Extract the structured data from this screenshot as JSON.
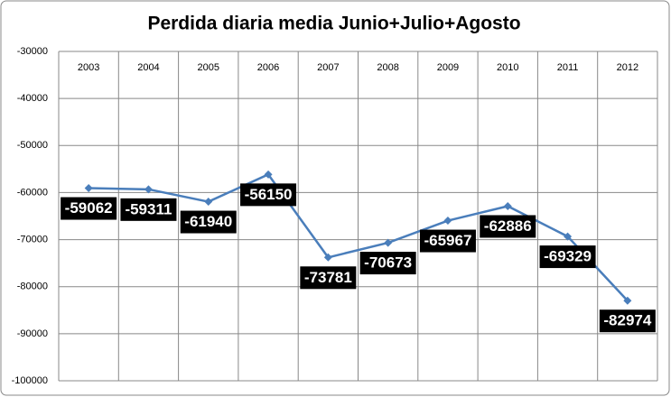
{
  "chart_data": {
    "type": "line",
    "title": "Perdida diaria media Junio+Julio+Agosto",
    "categories": [
      "2003",
      "2004",
      "2005",
      "2006",
      "2007",
      "2008",
      "2009",
      "2010",
      "2011",
      "2012"
    ],
    "series": [
      {
        "name": "Perdida diaria media",
        "color": "#4a7ebb",
        "values": [
          -59062,
          -59311,
          -61940,
          -56150,
          -73781,
          -70673,
          -65967,
          -62886,
          -69329,
          -82974
        ]
      }
    ],
    "ylim": [
      -100000,
      -30000
    ],
    "yticks": [
      -100000,
      -90000,
      -80000,
      -70000,
      -60000,
      -50000,
      -40000,
      -30000
    ],
    "grid": true
  }
}
